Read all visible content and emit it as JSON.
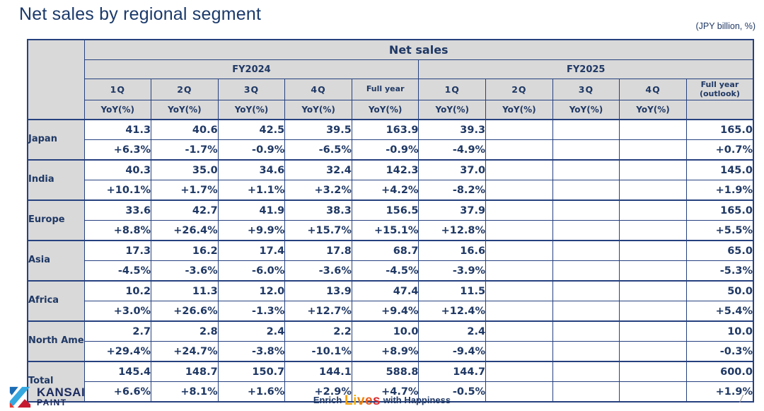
{
  "page": {
    "title": "Net sales by regional segment",
    "unit_note": "(JPY billion, %)",
    "page_separator": "/"
  },
  "colors": {
    "navy_text": "#1f3864",
    "table_border": "#26417f",
    "header_bg": "#d9d9d9",
    "logo_blue": "#1c6db5",
    "logo_light_blue": "#35a8e0",
    "logo_red": "#e8382f",
    "logo_dark_red": "#c61a31",
    "tagline_letter_colors": [
      "#f5a000",
      "#f9b000",
      "#f08300",
      "#e85d20",
      "#d42a30"
    ]
  },
  "table": {
    "title": "Net sales",
    "yoy_label": "YoY(%)",
    "groups": [
      {
        "label": "FY2024",
        "columns": [
          "1Q",
          "2Q",
          "3Q",
          "4Q",
          "Full year"
        ]
      },
      {
        "label": "FY2025",
        "columns": [
          "1Q",
          "2Q",
          "3Q",
          "4Q",
          "Full year (outlook)"
        ]
      }
    ],
    "rows": [
      {
        "region": "Japan",
        "values": [
          "41.3",
          "40.6",
          "42.5",
          "39.5",
          "163.9",
          "39.3",
          "",
          "",
          "",
          "165.0"
        ],
        "yoy": [
          "+6.3%",
          "-1.7%",
          "-0.9%",
          "-6.5%",
          "-0.9%",
          "-4.9%",
          "",
          "",
          "",
          "+0.7%"
        ]
      },
      {
        "region": "India",
        "values": [
          "40.3",
          "35.0",
          "34.6",
          "32.4",
          "142.3",
          "37.0",
          "",
          "",
          "",
          "145.0"
        ],
        "yoy": [
          "+10.1%",
          "+1.7%",
          "+1.1%",
          "+3.2%",
          "+4.2%",
          "-8.2%",
          "",
          "",
          "",
          "+1.9%"
        ]
      },
      {
        "region": "Europe",
        "values": [
          "33.6",
          "42.7",
          "41.9",
          "38.3",
          "156.5",
          "37.9",
          "",
          "",
          "",
          "165.0"
        ],
        "yoy": [
          "+8.8%",
          "+26.4%",
          "+9.9%",
          "+15.7%",
          "+15.1%",
          "+12.8%",
          "",
          "",
          "",
          "+5.5%"
        ]
      },
      {
        "region": "Asia",
        "values": [
          "17.3",
          "16.2",
          "17.4",
          "17.8",
          "68.7",
          "16.6",
          "",
          "",
          "",
          "65.0"
        ],
        "yoy": [
          "-4.5%",
          "-3.6%",
          "-6.0%",
          "-3.6%",
          "-4.5%",
          "-3.9%",
          "",
          "",
          "",
          "-5.3%"
        ]
      },
      {
        "region": "Africa",
        "values": [
          "10.2",
          "11.3",
          "12.0",
          "13.9",
          "47.4",
          "11.5",
          "",
          "",
          "",
          "50.0"
        ],
        "yoy": [
          "+3.0%",
          "+26.6%",
          "-1.3%",
          "+12.7%",
          "+9.4%",
          "+12.4%",
          "",
          "",
          "",
          "+5.4%"
        ]
      },
      {
        "region": "North America",
        "values": [
          "2.7",
          "2.8",
          "2.4",
          "2.2",
          "10.0",
          "2.4",
          "",
          "",
          "",
          "10.0"
        ],
        "yoy": [
          "+29.4%",
          "+24.7%",
          "-3.8%",
          "-10.1%",
          "+8.9%",
          "-9.4%",
          "",
          "",
          "",
          "-0.3%"
        ]
      },
      {
        "region": "Total",
        "values": [
          "145.4",
          "148.7",
          "150.7",
          "144.1",
          "588.8",
          "144.7",
          "",
          "",
          "",
          "600.0"
        ],
        "yoy": [
          "+6.6%",
          "+8.1%",
          "+1.6%",
          "+2.9%",
          "+4.7%",
          "-0.5%",
          "",
          "",
          "",
          "+1.9%"
        ]
      }
    ]
  },
  "footer": {
    "logo_name": "KANSAI",
    "logo_subname": "PAINT",
    "tagline_prefix": "Enrich",
    "tagline_accent": "Lives",
    "tagline_suffix": "with Happiness"
  }
}
